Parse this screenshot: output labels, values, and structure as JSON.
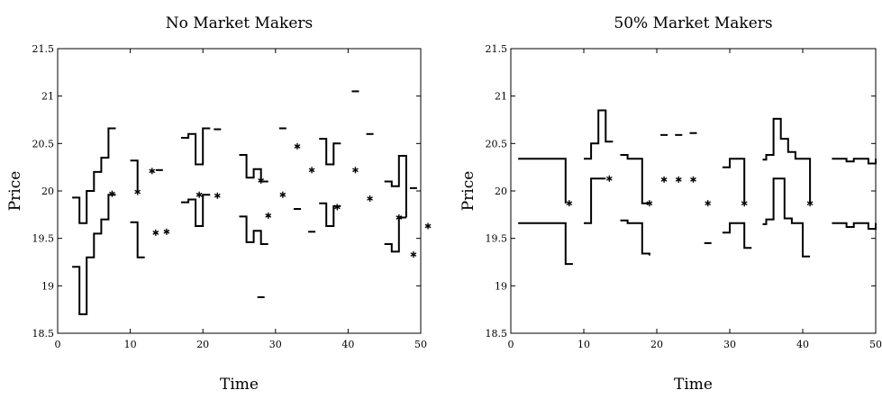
{
  "chart_data": [
    {
      "type": "line",
      "title": "No Market Makers",
      "xlabel": "Time",
      "ylabel": "Price",
      "xlim": [
        0,
        50
      ],
      "ylim": [
        18.5,
        21.5
      ],
      "xticks": [
        0,
        10,
        20,
        30,
        40,
        50
      ],
      "yticks": [
        18.5,
        19,
        19.5,
        20,
        20.5,
        21,
        21.5
      ],
      "grid": false,
      "series": [
        {
          "role": "ask",
          "segments": [
            [
              [
                2,
                19.93
              ],
              [
                3,
                19.93
              ],
              [
                3,
                19.66
              ],
              [
                4,
                19.66
              ],
              [
                4,
                20.0
              ],
              [
                5,
                20.0
              ],
              [
                5,
                20.2
              ],
              [
                6,
                20.2
              ],
              [
                6,
                20.35
              ],
              [
                7,
                20.35
              ],
              [
                7,
                20.66
              ],
              [
                8,
                20.66
              ]
            ],
            [
              [
                10,
                20.32
              ],
              [
                11,
                20.32
              ],
              [
                11,
                20.0
              ]
            ],
            [
              [
                17,
                20.56
              ],
              [
                18,
                20.56
              ],
              [
                18,
                20.6
              ],
              [
                19,
                20.6
              ],
              [
                19,
                20.28
              ],
              [
                20,
                20.28
              ],
              [
                20,
                20.66
              ],
              [
                21,
                20.66
              ]
            ],
            [
              [
                25,
                20.38
              ],
              [
                26,
                20.38
              ],
              [
                26,
                20.14
              ],
              [
                27,
                20.14
              ],
              [
                27,
                20.23
              ],
              [
                28,
                20.23
              ],
              [
                28,
                20.1
              ],
              [
                29,
                20.1
              ]
            ],
            [
              [
                36,
                20.55
              ],
              [
                37,
                20.55
              ],
              [
                37,
                20.28
              ],
              [
                38,
                20.28
              ],
              [
                38,
                20.5
              ],
              [
                39,
                20.5
              ]
            ],
            [
              [
                45,
                20.1
              ],
              [
                46,
                20.1
              ],
              [
                46,
                20.05
              ],
              [
                47,
                20.05
              ],
              [
                47,
                20.37
              ],
              [
                48,
                20.37
              ],
              [
                48,
                19.72
              ]
            ]
          ]
        },
        {
          "role": "bid",
          "segments": [
            [
              [
                2,
                19.2
              ],
              [
                3,
                19.2
              ],
              [
                3,
                18.7
              ],
              [
                4,
                18.7
              ],
              [
                4,
                19.3
              ],
              [
                5,
                19.3
              ],
              [
                5,
                19.55
              ],
              [
                6,
                19.55
              ],
              [
                6,
                19.7
              ],
              [
                7,
                19.7
              ],
              [
                7,
                19.96
              ],
              [
                8,
                19.96
              ]
            ],
            [
              [
                10,
                19.67
              ],
              [
                11,
                19.67
              ],
              [
                11,
                19.3
              ],
              [
                12,
                19.3
              ]
            ],
            [
              [
                17,
                19.88
              ],
              [
                18,
                19.88
              ],
              [
                18,
                19.91
              ],
              [
                19,
                19.91
              ],
              [
                19,
                19.63
              ],
              [
                20,
                19.63
              ],
              [
                20,
                19.96
              ],
              [
                21,
                19.96
              ]
            ],
            [
              [
                25,
                19.73
              ],
              [
                26,
                19.73
              ],
              [
                26,
                19.46
              ],
              [
                27,
                19.46
              ],
              [
                27,
                19.58
              ],
              [
                28,
                19.58
              ],
              [
                28,
                19.44
              ],
              [
                29,
                19.44
              ]
            ],
            [
              [
                36,
                19.87
              ],
              [
                37,
                19.87
              ],
              [
                37,
                19.63
              ],
              [
                38,
                19.63
              ],
              [
                38,
                19.84
              ],
              [
                39,
                19.84
              ]
            ],
            [
              [
                45,
                19.44
              ],
              [
                46,
                19.44
              ],
              [
                46,
                19.36
              ],
              [
                47,
                19.36
              ],
              [
                47,
                19.72
              ],
              [
                48,
                19.72
              ]
            ]
          ]
        }
      ],
      "single_quotes": [
        [
          14,
          20.22
        ],
        [
          22,
          20.65
        ],
        [
          28,
          18.88
        ],
        [
          31,
          20.66
        ],
        [
          33,
          19.81
        ],
        [
          35,
          19.57
        ],
        [
          43,
          20.6
        ],
        [
          41,
          21.05
        ],
        [
          49,
          20.03
        ]
      ],
      "trades": [
        [
          7.5,
          19.97
        ],
        [
          11,
          19.99
        ],
        [
          13,
          20.21
        ],
        [
          13.5,
          19.56
        ],
        [
          15,
          19.57
        ],
        [
          19.5,
          19.96
        ],
        [
          22,
          19.95
        ],
        [
          28,
          20.11
        ],
        [
          29,
          19.74
        ],
        [
          31,
          19.96
        ],
        [
          33,
          20.47
        ],
        [
          35,
          20.22
        ],
        [
          38.5,
          19.83
        ],
        [
          41,
          20.22
        ],
        [
          43,
          19.92
        ],
        [
          47,
          19.72
        ],
        [
          49,
          19.33
        ],
        [
          51,
          19.63
        ]
      ]
    },
    {
      "type": "line",
      "title": "50% Market Makers",
      "xlabel": "Time",
      "ylabel": "Price",
      "xlim": [
        0,
        50
      ],
      "ylim": [
        18.5,
        21.5
      ],
      "xticks": [
        0,
        10,
        20,
        30,
        40,
        50
      ],
      "yticks": [
        18.5,
        19,
        19.5,
        20,
        20.5,
        21,
        21.5
      ],
      "grid": false,
      "series": [
        {
          "role": "ask",
          "segments": [
            [
              [
                1,
                20.34
              ],
              [
                7.5,
                20.34
              ],
              [
                7.5,
                19.87
              ]
            ],
            [
              [
                10,
                20.34
              ],
              [
                11,
                20.34
              ],
              [
                11,
                20.5
              ],
              [
                12,
                20.5
              ],
              [
                12,
                20.85
              ],
              [
                13,
                20.85
              ],
              [
                13,
                20.52
              ],
              [
                14,
                20.52
              ]
            ],
            [
              [
                15,
                20.38
              ],
              [
                16,
                20.38
              ],
              [
                16,
                20.34
              ],
              [
                18,
                20.34
              ],
              [
                18,
                19.87
              ],
              [
                19,
                19.87
              ]
            ],
            [
              [
                29,
                20.25
              ],
              [
                30,
                20.25
              ],
              [
                30,
                20.34
              ],
              [
                32,
                20.34
              ],
              [
                32,
                19.87
              ]
            ],
            [
              [
                34.5,
                20.33
              ],
              [
                35,
                20.33
              ],
              [
                35,
                20.38
              ],
              [
                36,
                20.38
              ],
              [
                36,
                20.76
              ],
              [
                37,
                20.76
              ],
              [
                37,
                20.55
              ],
              [
                38,
                20.55
              ],
              [
                38,
                20.41
              ],
              [
                39,
                20.41
              ],
              [
                39,
                20.34
              ],
              [
                41,
                20.34
              ],
              [
                41,
                19.87
              ]
            ],
            [
              [
                44,
                20.34
              ],
              [
                46,
                20.34
              ],
              [
                46,
                20.31
              ],
              [
                47,
                20.31
              ],
              [
                47,
                20.34
              ],
              [
                49,
                20.34
              ],
              [
                49,
                20.29
              ],
              [
                50,
                20.29
              ],
              [
                50,
                20.34
              ]
            ]
          ]
        },
        {
          "role": "bid",
          "segments": [
            [
              [
                1,
                19.66
              ],
              [
                7.5,
                19.66
              ],
              [
                7.5,
                19.23
              ],
              [
                8.5,
                19.23
              ]
            ],
            [
              [
                10,
                19.66
              ],
              [
                11,
                19.66
              ],
              [
                11,
                20.13
              ],
              [
                13,
                20.13
              ]
            ],
            [
              [
                15,
                19.69
              ],
              [
                16,
                19.69
              ],
              [
                16,
                19.66
              ],
              [
                18,
                19.66
              ],
              [
                18,
                19.34
              ],
              [
                19,
                19.34
              ],
              [
                19,
                19.32
              ]
            ],
            [
              [
                29,
                19.56
              ],
              [
                30,
                19.56
              ],
              [
                30,
                19.66
              ],
              [
                32,
                19.66
              ],
              [
                32,
                19.4
              ],
              [
                33,
                19.4
              ]
            ],
            [
              [
                34.5,
                19.65
              ],
              [
                35,
                19.65
              ],
              [
                35,
                19.7
              ],
              [
                36,
                19.7
              ],
              [
                36,
                20.13
              ],
              [
                37.5,
                20.13
              ],
              [
                37.5,
                19.71
              ],
              [
                38.5,
                19.71
              ],
              [
                38.5,
                19.66
              ],
              [
                40,
                19.66
              ],
              [
                40,
                19.31
              ],
              [
                41,
                19.31
              ]
            ],
            [
              [
                44,
                19.66
              ],
              [
                46,
                19.66
              ],
              [
                46,
                19.62
              ],
              [
                47,
                19.62
              ],
              [
                47,
                19.66
              ],
              [
                49,
                19.66
              ],
              [
                49,
                19.6
              ],
              [
                50,
                19.6
              ],
              [
                50,
                19.66
              ]
            ]
          ]
        }
      ],
      "single_quotes": [
        [
          21,
          20.59
        ],
        [
          23,
          20.59
        ],
        [
          25,
          20.61
        ],
        [
          27,
          19.45
        ]
      ],
      "trades": [
        [
          8,
          19.87
        ],
        [
          13.5,
          20.13
        ],
        [
          19,
          19.87
        ],
        [
          21,
          20.12
        ],
        [
          23,
          20.12
        ],
        [
          25,
          20.12
        ],
        [
          27,
          19.87
        ],
        [
          32,
          19.87
        ],
        [
          41,
          19.87
        ]
      ]
    }
  ]
}
